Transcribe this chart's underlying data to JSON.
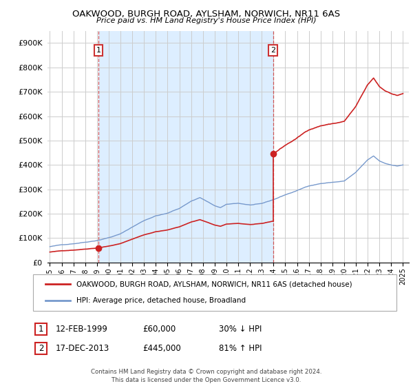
{
  "title": "OAKWOOD, BURGH ROAD, AYLSHAM, NORWICH, NR11 6AS",
  "subtitle": "Price paid vs. HM Land Registry's House Price Index (HPI)",
  "legend_line1": "OAKWOOD, BURGH ROAD, AYLSHAM, NORWICH, NR11 6AS (detached house)",
  "legend_line2": "HPI: Average price, detached house, Broadland",
  "transaction1_date": "12-FEB-1999",
  "transaction1_price": "£60,000",
  "transaction1_hpi": "30% ↓ HPI",
  "transaction1_year": 1999.12,
  "transaction1_value": 60000,
  "transaction2_date": "17-DEC-2013",
  "transaction2_price": "£445,000",
  "transaction2_hpi": "81% ↑ HPI",
  "transaction2_year": 2013.96,
  "transaction2_value": 445000,
  "footer": "Contains HM Land Registry data © Crown copyright and database right 2024.\nThis data is licensed under the Open Government Licence v3.0.",
  "hpi_color": "#7799cc",
  "price_color": "#cc2222",
  "dashed_color": "#cc3333",
  "shade_color": "#ddeeff",
  "background_color": "#ffffff",
  "grid_color": "#cccccc",
  "ylim": [
    0,
    950000
  ],
  "xlim_start": 1994.8,
  "xlim_end": 2025.5
}
